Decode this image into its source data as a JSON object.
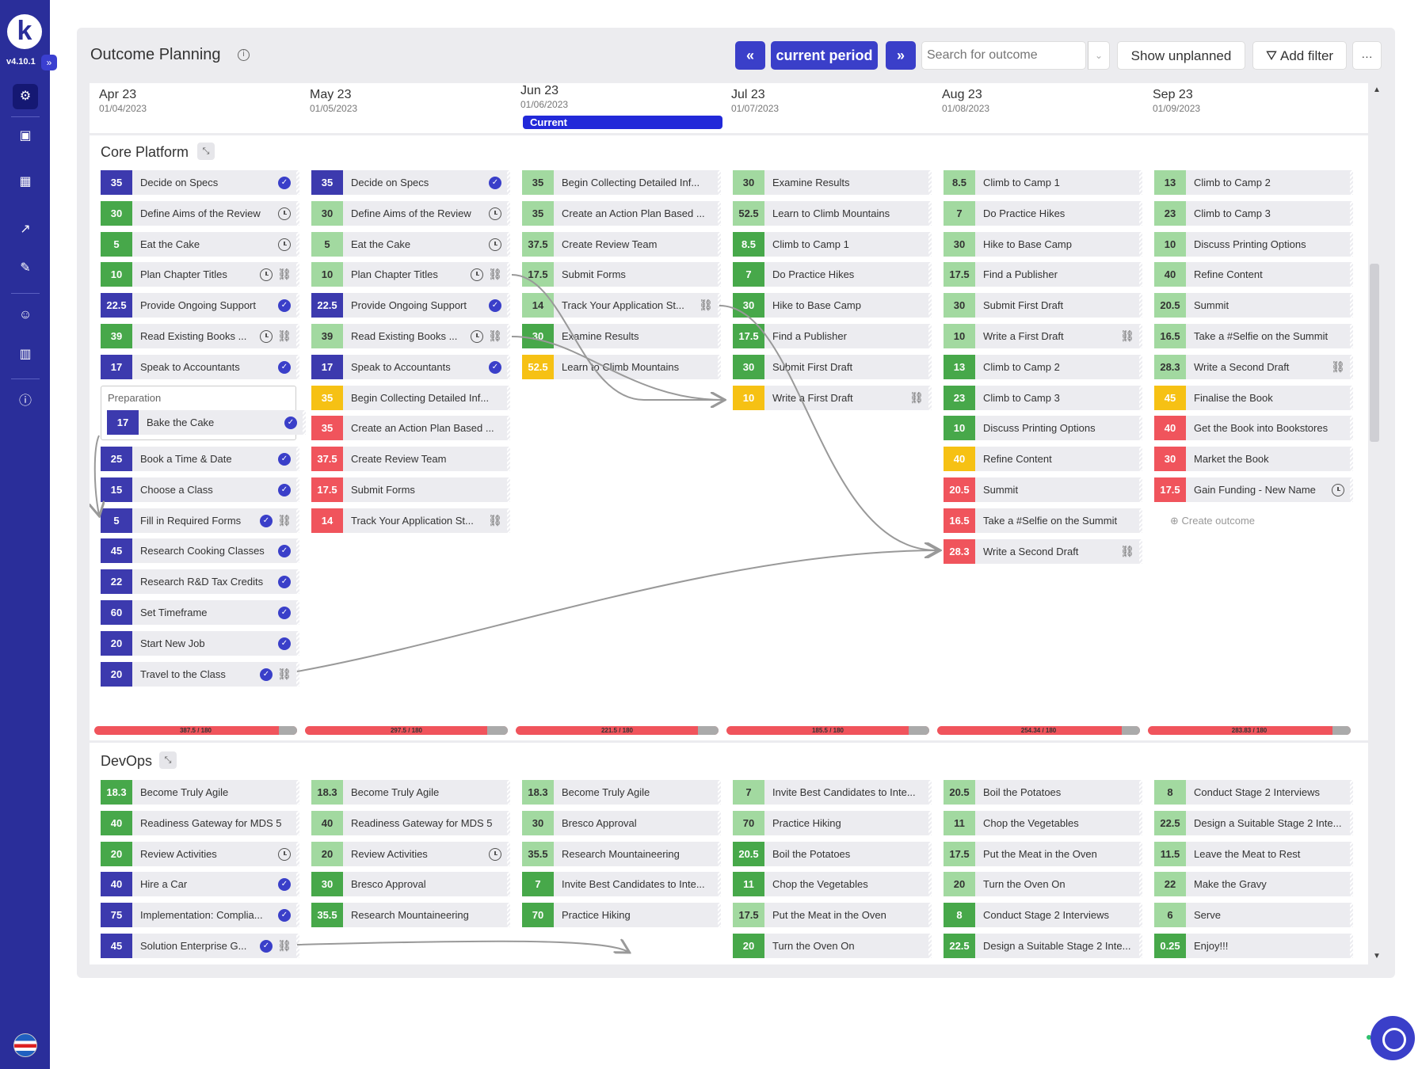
{
  "app": {
    "logo": "k",
    "version": "v4.10.1",
    "expand": "»"
  },
  "nav": [
    "solutions-icon",
    "briefcase-icon",
    "calendar-icon",
    "chart-icon",
    "pin-icon",
    "people-icon",
    "building-icon",
    "info-icon"
  ],
  "header": {
    "title": "Outcome Planning",
    "prev": "«",
    "current": "current period",
    "next": "»",
    "search_placeholder": "Search for outcome",
    "show_unplanned": "Show unplanned",
    "add_filter": "Add filter",
    "more": "···"
  },
  "months": [
    {
      "name": "Apr 23",
      "date": "01/04/2023"
    },
    {
      "name": "May 23",
      "date": "01/05/2023"
    },
    {
      "name": "Jun 23",
      "date": "01/06/2023"
    },
    {
      "name": "Jul 23",
      "date": "01/07/2023"
    },
    {
      "name": "Aug 23",
      "date": "01/08/2023"
    },
    {
      "name": "Sep 23",
      "date": "01/09/2023"
    }
  ],
  "current_label": "Current",
  "groups": [
    {
      "name": "Core Platform",
      "epic": "Preparation",
      "create": "Create outcome",
      "capacity": [
        "387.5 / 180",
        "297.5 / 180",
        "221.5 / 180",
        "185.5 / 180",
        "254.34 / 180",
        "283.83 / 180"
      ],
      "capacity_fill": [
        0.91,
        0.9,
        0.9,
        0.9,
        0.91,
        0.91
      ],
      "columns": [
        [
          {
            "s": "35",
            "c": "navy",
            "t": "Decide on Specs",
            "i": [
              "check"
            ]
          },
          {
            "s": "30",
            "c": "green",
            "t": "Define Aims of the Review",
            "i": [
              "clock"
            ]
          },
          {
            "s": "5",
            "c": "green",
            "t": "Eat the Cake",
            "i": [
              "clock"
            ]
          },
          {
            "s": "10",
            "c": "green",
            "t": "Plan Chapter Titles",
            "i": [
              "clock",
              "link"
            ]
          },
          {
            "s": "22.5",
            "c": "navy",
            "t": "Provide Ongoing Support",
            "i": [
              "check"
            ]
          },
          {
            "s": "39",
            "c": "green",
            "t": "Read Existing Books ...",
            "i": [
              "clock",
              "link"
            ]
          },
          {
            "s": "17",
            "c": "navy",
            "t": "Speak to Accountants",
            "i": [
              "check"
            ]
          },
          {
            "s": "17",
            "c": "navy",
            "t": "Bake the Cake",
            "i": [
              "check"
            ],
            "epic": true
          },
          {
            "s": "25",
            "c": "navy",
            "t": "Book a Time & Date",
            "i": [
              "check"
            ]
          },
          {
            "s": "15",
            "c": "navy",
            "t": "Choose a Class",
            "i": [
              "check"
            ]
          },
          {
            "s": "5",
            "c": "navy",
            "t": "Fill in Required Forms",
            "i": [
              "check",
              "link"
            ]
          },
          {
            "s": "45",
            "c": "navy",
            "t": "Research Cooking Classes",
            "i": [
              "check"
            ]
          },
          {
            "s": "22",
            "c": "navy",
            "t": "Research R&D Tax Credits",
            "i": [
              "check"
            ]
          },
          {
            "s": "60",
            "c": "navy",
            "t": "Set Timeframe",
            "i": [
              "check"
            ]
          },
          {
            "s": "20",
            "c": "navy",
            "t": "Start New Job",
            "i": [
              "check"
            ]
          },
          {
            "s": "20",
            "c": "navy",
            "t": "Travel to the Class",
            "i": [
              "check",
              "link"
            ]
          }
        ],
        [
          {
            "s": "35",
            "c": "navy",
            "t": "Decide on Specs",
            "i": [
              "check"
            ]
          },
          {
            "s": "30",
            "c": "lgreen",
            "t": "Define Aims of the Review",
            "i": [
              "clock"
            ]
          },
          {
            "s": "5",
            "c": "lgreen",
            "t": "Eat the Cake",
            "i": [
              "clock"
            ]
          },
          {
            "s": "10",
            "c": "lgreen",
            "t": "Plan Chapter Titles",
            "i": [
              "clock",
              "link"
            ]
          },
          {
            "s": "22.5",
            "c": "navy",
            "t": "Provide Ongoing Support",
            "i": [
              "check"
            ]
          },
          {
            "s": "39",
            "c": "lgreen",
            "t": "Read Existing Books ...",
            "i": [
              "clock",
              "link"
            ]
          },
          {
            "s": "17",
            "c": "navy",
            "t": "Speak to Accountants",
            "i": [
              "check"
            ]
          },
          {
            "s": "35",
            "c": "yellow",
            "t": "Begin Collecting Detailed Inf...",
            "i": []
          },
          {
            "s": "35",
            "c": "red",
            "t": "Create an Action Plan Based ...",
            "i": []
          },
          {
            "s": "37.5",
            "c": "red",
            "t": "Create Review Team",
            "i": []
          },
          {
            "s": "17.5",
            "c": "red",
            "t": "Submit Forms",
            "i": []
          },
          {
            "s": "14",
            "c": "red",
            "t": "Track Your Application St...",
            "i": [
              "link"
            ]
          }
        ],
        [
          {
            "s": "35",
            "c": "lgreen",
            "t": "Begin Collecting Detailed Inf...",
            "i": []
          },
          {
            "s": "35",
            "c": "lgreen",
            "t": "Create an Action Plan Based ...",
            "i": []
          },
          {
            "s": "37.5",
            "c": "lgreen",
            "t": "Create Review Team",
            "i": []
          },
          {
            "s": "17.5",
            "c": "lgreen",
            "t": "Submit Forms",
            "i": []
          },
          {
            "s": "14",
            "c": "lgreen",
            "t": "Track Your Application St...",
            "i": [
              "link"
            ]
          },
          {
            "s": "30",
            "c": "green",
            "t": "Examine Results",
            "i": []
          },
          {
            "s": "52.5",
            "c": "yellow",
            "t": "Learn to Climb Mountains",
            "i": []
          }
        ],
        [
          {
            "s": "30",
            "c": "lgreen",
            "t": "Examine Results",
            "i": []
          },
          {
            "s": "52.5",
            "c": "lgreen",
            "t": "Learn to Climb Mountains",
            "i": []
          },
          {
            "s": "8.5",
            "c": "green",
            "t": "Climb to Camp 1",
            "i": []
          },
          {
            "s": "7",
            "c": "green",
            "t": "Do Practice Hikes",
            "i": []
          },
          {
            "s": "30",
            "c": "green",
            "t": "Hike to Base Camp",
            "i": []
          },
          {
            "s": "17.5",
            "c": "green",
            "t": "Find a Publisher",
            "i": []
          },
          {
            "s": "30",
            "c": "green",
            "t": "Submit First Draft",
            "i": []
          },
          {
            "s": "10",
            "c": "yellow",
            "t": "Write a First Draft",
            "i": [
              "link"
            ]
          }
        ],
        [
          {
            "s": "8.5",
            "c": "lgreen",
            "t": "Climb to Camp 1",
            "i": []
          },
          {
            "s": "7",
            "c": "lgreen",
            "t": "Do Practice Hikes",
            "i": []
          },
          {
            "s": "30",
            "c": "lgreen",
            "t": "Hike to Base Camp",
            "i": []
          },
          {
            "s": "17.5",
            "c": "lgreen",
            "t": "Find a Publisher",
            "i": []
          },
          {
            "s": "30",
            "c": "lgreen",
            "t": "Submit First Draft",
            "i": []
          },
          {
            "s": "10",
            "c": "lgreen",
            "t": "Write a First Draft",
            "i": [
              "link"
            ]
          },
          {
            "s": "13",
            "c": "green",
            "t": "Climb to Camp 2",
            "i": []
          },
          {
            "s": "23",
            "c": "green",
            "t": "Climb to Camp 3",
            "i": []
          },
          {
            "s": "10",
            "c": "green",
            "t": "Discuss Printing Options",
            "i": []
          },
          {
            "s": "40",
            "c": "yellow",
            "t": "Refine Content",
            "i": []
          },
          {
            "s": "20.5",
            "c": "red",
            "t": "Summit",
            "i": []
          },
          {
            "s": "16.5",
            "c": "red",
            "t": "Take a #Selfie on the Summit",
            "i": []
          },
          {
            "s": "28.3",
            "c": "red",
            "t": "Write a Second Draft",
            "i": [
              "link"
            ]
          }
        ],
        [
          {
            "s": "13",
            "c": "lgreen",
            "t": "Climb to Camp 2",
            "i": []
          },
          {
            "s": "23",
            "c": "lgreen",
            "t": "Climb to Camp 3",
            "i": []
          },
          {
            "s": "10",
            "c": "lgreen",
            "t": "Discuss Printing Options",
            "i": []
          },
          {
            "s": "40",
            "c": "lgreen",
            "t": "Refine Content",
            "i": []
          },
          {
            "s": "20.5",
            "c": "lgreen",
            "t": "Summit",
            "i": []
          },
          {
            "s": "16.5",
            "c": "lgreen",
            "t": "Take a #Selfie on the Summit",
            "i": []
          },
          {
            "s": "28.3",
            "c": "lgreen",
            "t": "Write a Second Draft",
            "i": [
              "link"
            ]
          },
          {
            "s": "45",
            "c": "yellow",
            "t": "Finalise the Book",
            "i": []
          },
          {
            "s": "40",
            "c": "red",
            "t": "Get the Book into Bookstores",
            "i": []
          },
          {
            "s": "30",
            "c": "red",
            "t": "Market the Book",
            "i": []
          },
          {
            "s": "17.5",
            "c": "red",
            "t": "Gain Funding - New Name",
            "i": [
              "clock"
            ]
          }
        ]
      ]
    },
    {
      "name": "DevOps",
      "columns": [
        [
          {
            "s": "18.3",
            "c": "green",
            "t": "Become Truly Agile",
            "i": []
          },
          {
            "s": "40",
            "c": "green",
            "t": "Readiness Gateway for MDS 5",
            "i": []
          },
          {
            "s": "20",
            "c": "green",
            "t": "Review Activities",
            "i": [
              "clock"
            ]
          },
          {
            "s": "40",
            "c": "navy",
            "t": "Hire a Car",
            "i": [
              "check"
            ]
          },
          {
            "s": "75",
            "c": "navy",
            "t": "Implementation: Complia...",
            "i": [
              "check"
            ]
          },
          {
            "s": "45",
            "c": "navy",
            "t": "Solution Enterprise G...",
            "i": [
              "check",
              "link"
            ]
          }
        ],
        [
          {
            "s": "18.3",
            "c": "lgreen",
            "t": "Become Truly Agile",
            "i": []
          },
          {
            "s": "40",
            "c": "lgreen",
            "t": "Readiness Gateway for MDS 5",
            "i": []
          },
          {
            "s": "20",
            "c": "lgreen",
            "t": "Review Activities",
            "i": [
              "clock"
            ]
          },
          {
            "s": "30",
            "c": "green",
            "t": "Bresco Approval",
            "i": []
          },
          {
            "s": "35.5",
            "c": "green",
            "t": "Research Mountaineering",
            "i": []
          }
        ],
        [
          {
            "s": "18.3",
            "c": "lgreen",
            "t": "Become Truly Agile",
            "i": []
          },
          {
            "s": "30",
            "c": "lgreen",
            "t": "Bresco Approval",
            "i": []
          },
          {
            "s": "35.5",
            "c": "lgreen",
            "t": "Research Mountaineering",
            "i": []
          },
          {
            "s": "7",
            "c": "green",
            "t": "Invite Best Candidates to Inte...",
            "i": []
          },
          {
            "s": "70",
            "c": "green",
            "t": "Practice Hiking",
            "i": []
          }
        ],
        [
          {
            "s": "7",
            "c": "lgreen",
            "t": "Invite Best Candidates to Inte...",
            "i": []
          },
          {
            "s": "70",
            "c": "lgreen",
            "t": "Practice Hiking",
            "i": []
          },
          {
            "s": "20.5",
            "c": "green",
            "t": "Boil the Potatoes",
            "i": []
          },
          {
            "s": "11",
            "c": "green",
            "t": "Chop the Vegetables",
            "i": []
          },
          {
            "s": "17.5",
            "c": "lgreen",
            "t": "Put the Meat in the Oven",
            "i": []
          },
          {
            "s": "20",
            "c": "green",
            "t": "Turn the Oven On",
            "i": []
          }
        ],
        [
          {
            "s": "20.5",
            "c": "lgreen",
            "t": "Boil the Potatoes",
            "i": []
          },
          {
            "s": "11",
            "c": "lgreen",
            "t": "Chop the Vegetables",
            "i": []
          },
          {
            "s": "17.5",
            "c": "lgreen",
            "t": "Put the Meat in the Oven",
            "i": []
          },
          {
            "s": "20",
            "c": "lgreen",
            "t": "Turn the Oven On",
            "i": []
          },
          {
            "s": "8",
            "c": "green",
            "t": "Conduct Stage 2 Interviews",
            "i": []
          },
          {
            "s": "22.5",
            "c": "green",
            "t": "Design a Suitable Stage 2 Inte...",
            "i": []
          }
        ],
        [
          {
            "s": "8",
            "c": "lgreen",
            "t": "Conduct Stage 2 Interviews",
            "i": []
          },
          {
            "s": "22.5",
            "c": "lgreen",
            "t": "Design a Suitable Stage 2 Inte...",
            "i": []
          },
          {
            "s": "11.5",
            "c": "lgreen",
            "t": "Leave the Meat to Rest",
            "i": []
          },
          {
            "s": "22",
            "c": "lgreen",
            "t": "Make the Gravy",
            "i": []
          },
          {
            "s": "6",
            "c": "lgreen",
            "t": "Serve",
            "i": []
          },
          {
            "s": "0.25",
            "c": "green",
            "t": "Enjoy!!!",
            "i": []
          }
        ]
      ]
    }
  ],
  "scroll": {
    "up": "▲",
    "down": "▼"
  }
}
